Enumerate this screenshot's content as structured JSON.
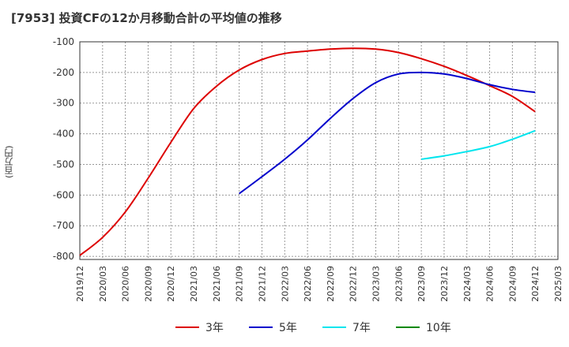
{
  "chart_data": {
    "type": "line",
    "title": "[7953]  投資CFの12か月移動合計の平均値の推移",
    "ylabel": "(百万円)",
    "xlabel": "",
    "ylim": [
      -810,
      -100
    ],
    "y_ticks": [
      -100,
      -200,
      -300,
      -400,
      -500,
      -600,
      -700,
      -800
    ],
    "x_ticks": [
      "2019/12",
      "2020/03",
      "2020/06",
      "2020/09",
      "2020/12",
      "2021/03",
      "2021/06",
      "2021/09",
      "2021/12",
      "2022/03",
      "2022/06",
      "2022/09",
      "2022/12",
      "2023/03",
      "2023/06",
      "2023/09",
      "2023/12",
      "2024/03",
      "2024/06",
      "2024/09",
      "2024/12",
      "2025/03"
    ],
    "grid": true,
    "legend_position": "bottom",
    "series": [
      {
        "name": "3年",
        "color": "#dd0000",
        "points": [
          [
            "2019/12",
            -797
          ],
          [
            "2020/03",
            -738
          ],
          [
            "2020/06",
            -655
          ],
          [
            "2020/09",
            -545
          ],
          [
            "2020/12",
            -428
          ],
          [
            "2021/03",
            -318
          ],
          [
            "2021/06",
            -245
          ],
          [
            "2021/09",
            -192
          ],
          [
            "2021/12",
            -158
          ],
          [
            "2022/03",
            -138
          ],
          [
            "2022/06",
            -130
          ],
          [
            "2022/09",
            -124
          ],
          [
            "2022/12",
            -121
          ],
          [
            "2023/03",
            -124
          ],
          [
            "2023/06",
            -135
          ],
          [
            "2023/09",
            -155
          ],
          [
            "2023/12",
            -180
          ],
          [
            "2024/03",
            -210
          ],
          [
            "2024/06",
            -243
          ],
          [
            "2024/09",
            -278
          ],
          [
            "2024/12",
            -328
          ]
        ]
      },
      {
        "name": "5年",
        "color": "#0000cc",
        "points": [
          [
            "2021/09",
            -595
          ],
          [
            "2021/12",
            -540
          ],
          [
            "2022/03",
            -483
          ],
          [
            "2022/06",
            -420
          ],
          [
            "2022/09",
            -350
          ],
          [
            "2022/12",
            -285
          ],
          [
            "2023/03",
            -233
          ],
          [
            "2023/06",
            -205
          ],
          [
            "2023/09",
            -200
          ],
          [
            "2023/12",
            -205
          ],
          [
            "2024/03",
            -220
          ],
          [
            "2024/06",
            -240
          ],
          [
            "2024/09",
            -255
          ],
          [
            "2024/12",
            -265
          ]
        ]
      },
      {
        "name": "7年",
        "color": "#00e5ee",
        "points": [
          [
            "2023/09",
            -483
          ],
          [
            "2023/12",
            -472
          ],
          [
            "2024/03",
            -458
          ],
          [
            "2024/06",
            -442
          ],
          [
            "2024/09",
            -418
          ],
          [
            "2024/12",
            -390
          ]
        ]
      },
      {
        "name": "10年",
        "color": "#008800",
        "points": []
      }
    ]
  }
}
